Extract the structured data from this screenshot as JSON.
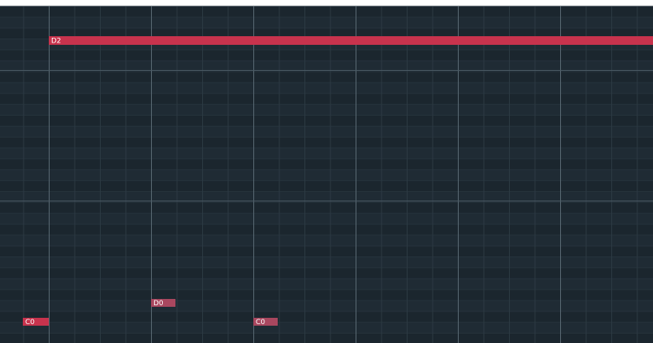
{
  "notes": [
    {
      "label": "D2"
    },
    {
      "label": "D0"
    },
    {
      "label": "C0"
    },
    {
      "label": "C0"
    }
  ]
}
